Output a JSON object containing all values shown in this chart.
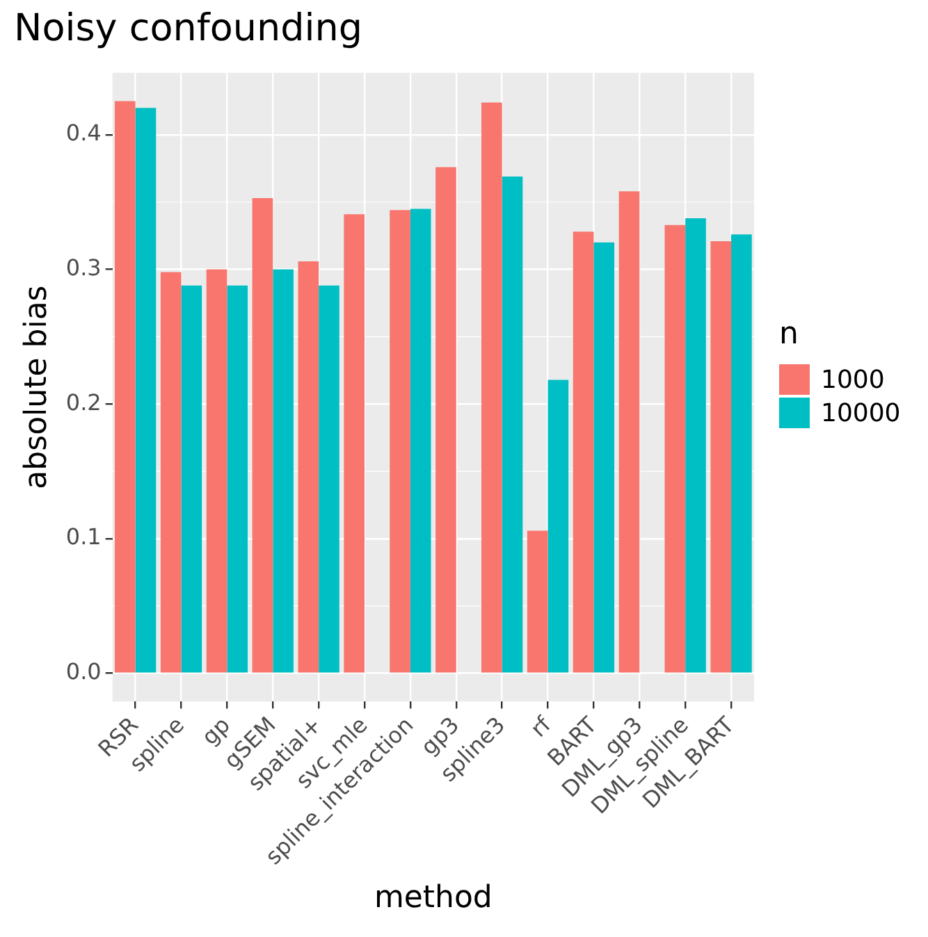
{
  "chart_data": {
    "type": "bar",
    "title": "Noisy confounding",
    "xlabel": "method",
    "ylabel": "absolute bias",
    "legend_title": "n",
    "categories": [
      "RSR",
      "spline",
      "gp",
      "gSEM",
      "spatial+",
      "svc_mle",
      "spline_interaction",
      "gp3",
      "spline3",
      "rf",
      "BART",
      "DML_gp3",
      "DML_spline",
      "DML_BART"
    ],
    "series": [
      {
        "name": "1000",
        "color": "#f8766d",
        "values": [
          0.425,
          0.298,
          0.3,
          0.353,
          0.306,
          0.341,
          0.344,
          0.376,
          0.424,
          0.106,
          0.328,
          0.358,
          0.333,
          0.321
        ]
      },
      {
        "name": "10000",
        "color": "#00bfc4",
        "values": [
          0.42,
          0.288,
          0.288,
          0.3,
          0.288,
          null,
          0.345,
          null,
          0.369,
          0.218,
          0.32,
          null,
          0.338,
          0.326
        ]
      }
    ],
    "ylim": [
      -0.021,
      0.446
    ],
    "yticks": [
      {
        "value": 0,
        "label": "0.0"
      },
      {
        "value": 0.1,
        "label": "0.1"
      },
      {
        "value": 0.2,
        "label": "0.2"
      },
      {
        "value": 0.3,
        "label": "0.3"
      },
      {
        "value": 0.4,
        "label": "0.4"
      }
    ],
    "grid": true,
    "legend": "right"
  }
}
